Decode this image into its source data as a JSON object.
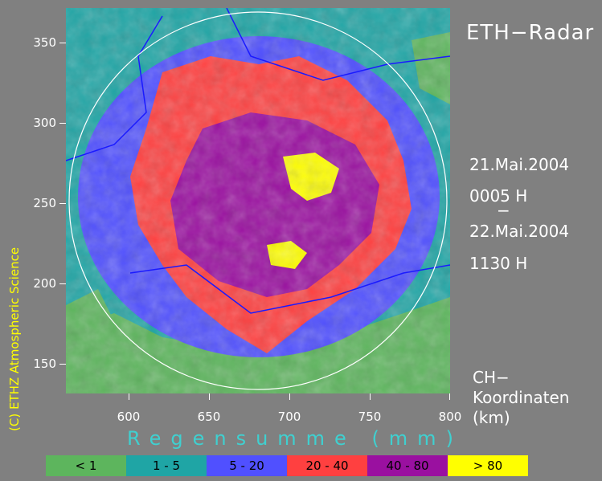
{
  "title": "ETH−Radar",
  "period": {
    "start_date": "21.Mai.2004",
    "start_time": "0005 H",
    "separator": "−",
    "end_date": "22.Mai.2004",
    "end_time": "1130 H"
  },
  "coords_label": [
    "CH−",
    "Koordinaten",
    "(km)"
  ],
  "xlabel": "Regensumme (mm)",
  "credit": "(C) ETHZ Atmospheric Science",
  "axes": {
    "x_ticks": [
      600,
      650,
      700,
      750,
      800
    ],
    "y_ticks": [
      350,
      300,
      250,
      200,
      150
    ],
    "xlim": [
      560,
      800
    ],
    "ylim": [
      132,
      372
    ]
  },
  "legend": [
    {
      "label": "< 1",
      "color": "#5db55d"
    },
    {
      "label": "1 - 5",
      "color": "#1fa5a5"
    },
    {
      "label": "5 - 20",
      "color": "#5050ff"
    },
    {
      "label": "20 - 40",
      "color": "#ff4040"
    },
    {
      "label": "40 - 80",
      "color": "#9a10a0"
    },
    {
      "label": "> 80",
      "color": "#ffff00"
    }
  ]
}
